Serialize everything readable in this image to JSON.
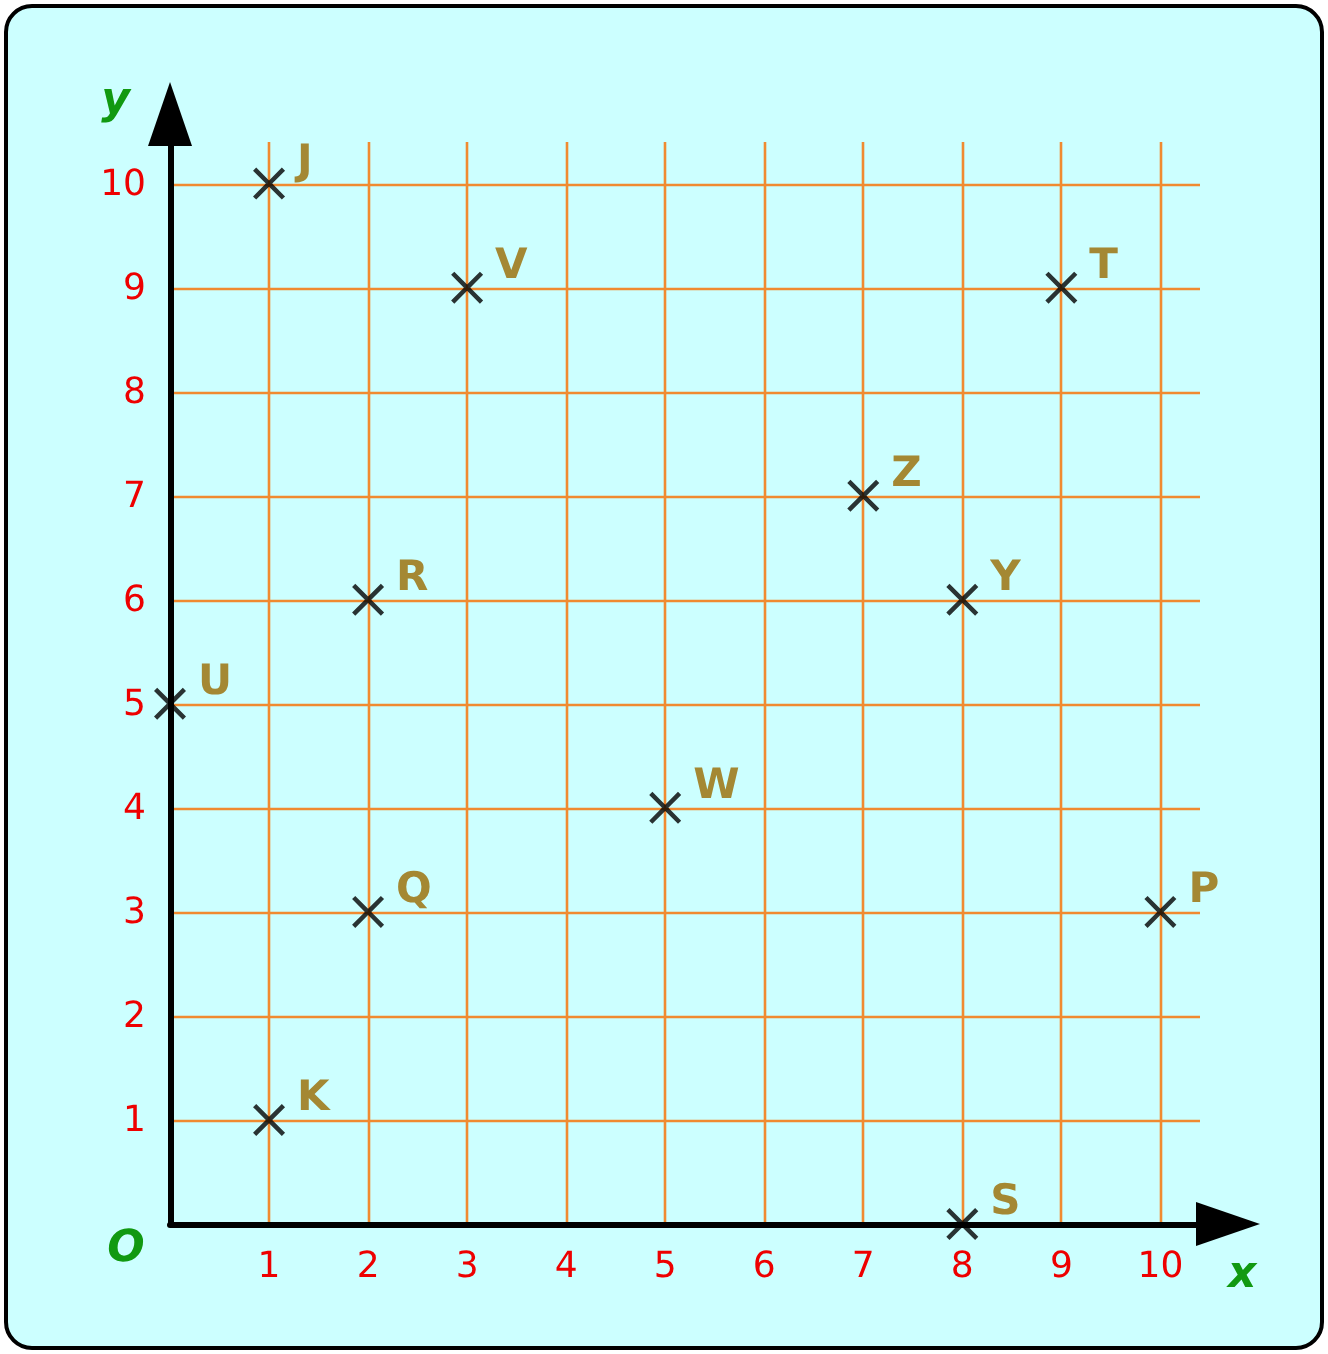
{
  "chart_data": {
    "type": "scatter",
    "xlabel": "x",
    "ylabel": "y",
    "x": [
      1,
      3,
      9,
      7,
      8,
      2,
      0,
      5,
      2,
      10,
      1,
      8
    ],
    "values": [
      10,
      9,
      9,
      7,
      6,
      6,
      5,
      4,
      3,
      3,
      1,
      0
    ],
    "value_labels": [
      "J",
      "V",
      "T",
      "Z",
      "Y",
      "R",
      "U",
      "W",
      "Q",
      "P",
      "K",
      "S"
    ],
    "color": "#000000",
    "marker": "cross",
    "xlim": [
      0,
      10.4
    ],
    "ylim": [
      0,
      10.4
    ],
    "xticks": [
      1,
      2,
      3,
      4,
      5,
      6,
      7,
      8,
      9,
      10
    ],
    "yticks": [
      1,
      2,
      3,
      4,
      5,
      6,
      7,
      8,
      9,
      10
    ],
    "grid": true,
    "annotations": [
      "O"
    ]
  }
}
